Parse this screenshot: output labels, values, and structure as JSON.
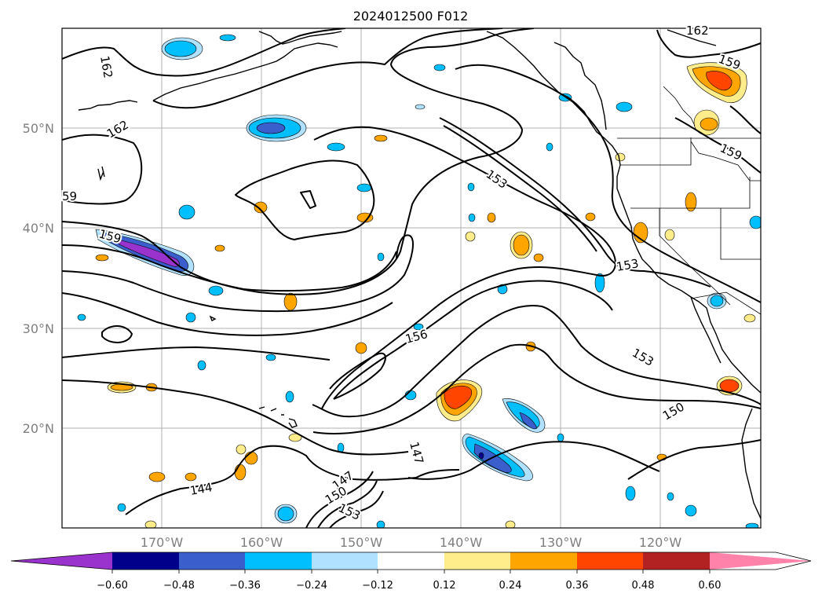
{
  "title": "2024012500 F012",
  "lat_labels": [
    "50°N",
    "40°N",
    "30°N",
    "20°N"
  ],
  "lon_labels": [
    "170°W",
    "160°W",
    "150°W",
    "140°W",
    "130°W",
    "120°W"
  ],
  "contour_labels": [
    "162",
    "162",
    "162",
    "159",
    "159",
    "159",
    "59",
    "153",
    "153",
    "153",
    "156",
    "147",
    "150",
    "144",
    "147",
    "150",
    "153"
  ],
  "colorbar": {
    "ticks": [
      "−0.60",
      "−0.48",
      "−0.36",
      "−0.24",
      "−0.12",
      "0.12",
      "0.24",
      "0.36",
      "0.48",
      "0.60"
    ],
    "colors": [
      "#9a32cd",
      "#00008b",
      "#3a5fcd",
      "#00bfff",
      "#b0e2ff",
      "#ffffff",
      "#ffec8b",
      "#ffa500",
      "#ff4500",
      "#b22222",
      "#ff82ab"
    ]
  }
}
